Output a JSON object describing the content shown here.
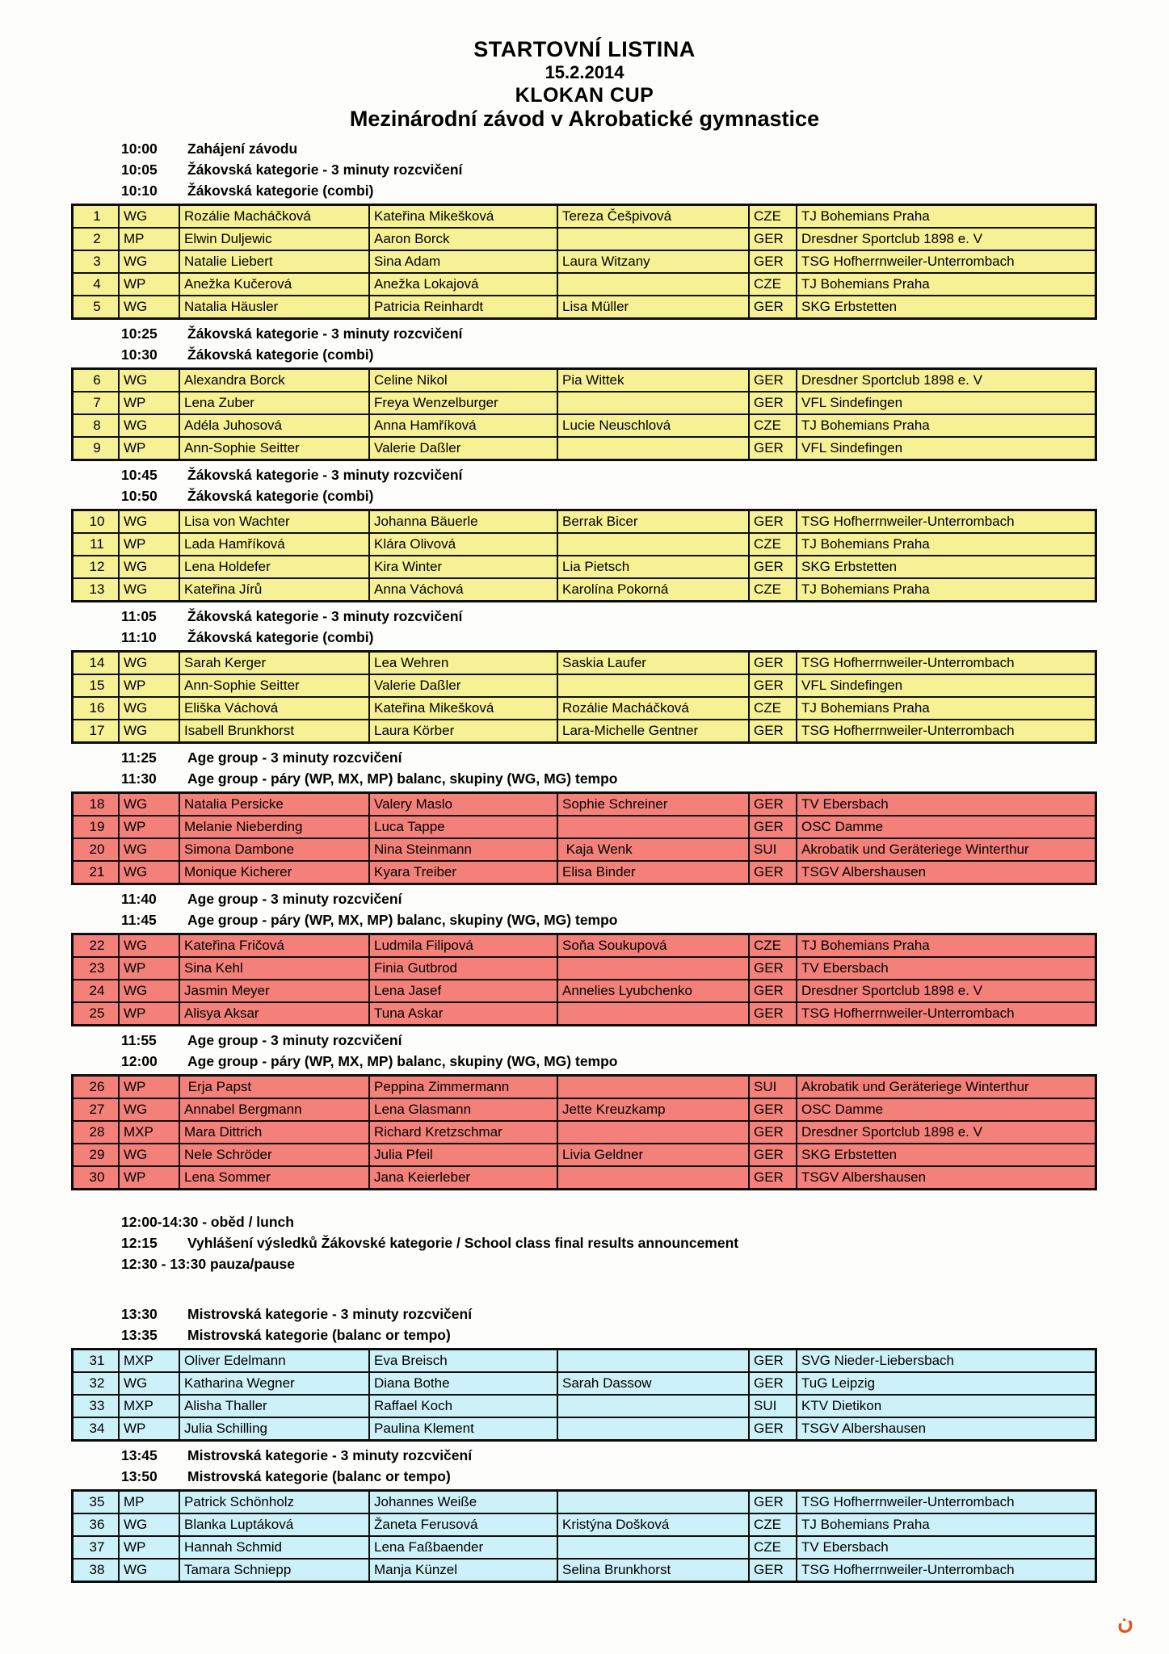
{
  "title": {
    "line1": "STARTOVNÍ LISTINA",
    "line2": "15.2.2014",
    "line3": "KLOKAN CUP",
    "line4": "Mezinárodní závod v Akrobatické gymnastice"
  },
  "colors": {
    "yellow": "#f7f196",
    "salmon": "#f4807a",
    "cyan": "#cdf1f8"
  },
  "corner_mark": "ن",
  "blocks": [
    {
      "type": "schedule",
      "items": [
        {
          "time": "10:00",
          "label": "Zahájení závodu"
        },
        {
          "time": "10:05",
          "label": "Žákovská kategorie - 3 minuty rozcvičení"
        },
        {
          "time": "10:10",
          "label": "Žákovská kategorie (combi)"
        }
      ]
    },
    {
      "type": "table",
      "color": "yellow",
      "rows": [
        [
          "1",
          "WG",
          "Rozálie Macháčková",
          "Kateřina Mikešková",
          "Tereza Češpivová",
          "CZE",
          "TJ Bohemians Praha"
        ],
        [
          "2",
          "MP",
          "Elwin Duljewic",
          "Aaron Borck",
          "",
          "GER",
          "Dresdner Sportclub 1898 e. V"
        ],
        [
          "3",
          "WG",
          "Natalie Liebert",
          "Sina Adam",
          "Laura Witzany",
          "GER",
          "TSG Hofherrnweiler-Unterrombach"
        ],
        [
          "4",
          "WP",
          "Anežka Kučerová",
          "Anežka Lokajová",
          "",
          "CZE",
          "TJ Bohemians Praha"
        ],
        [
          "5",
          "WG",
          "Natalia Häusler",
          "Patricia Reinhardt",
          "Lisa Müller",
          "GER",
          "SKG Erbstetten"
        ]
      ]
    },
    {
      "type": "schedule",
      "items": [
        {
          "time": "10:25",
          "label": "Žákovská kategorie - 3 minuty rozcvičení"
        },
        {
          "time": "10:30",
          "label": "Žákovská kategorie (combi)"
        }
      ]
    },
    {
      "type": "table",
      "color": "yellow",
      "rows": [
        [
          "6",
          "WG",
          "Alexandra Borck",
          "Celine Nikol",
          "Pia Wittek",
          "GER",
          "Dresdner Sportclub 1898 e. V"
        ],
        [
          "7",
          "WP",
          "Lena Zuber",
          "Freya Wenzelburger",
          "",
          "GER",
          "VFL Sindefingen"
        ],
        [
          "8",
          "WG",
          "Adéla Juhosová",
          "Anna Hamříková",
          "Lucie Neuschlová",
          "CZE",
          "TJ Bohemians Praha"
        ],
        [
          "9",
          "WP",
          "Ann-Sophie Seitter",
          "Valerie Daßler",
          "",
          "GER",
          "VFL Sindefingen"
        ]
      ]
    },
    {
      "type": "schedule",
      "items": [
        {
          "time": "10:45",
          "label": "Žákovská kategorie - 3 minuty rozcvičení"
        },
        {
          "time": "10:50",
          "label": "Žákovská kategorie (combi)"
        }
      ]
    },
    {
      "type": "table",
      "color": "yellow",
      "rows": [
        [
          "10",
          "WG",
          "Lisa von Wachter",
          "Johanna Bäuerle",
          "Berrak Bicer",
          "GER",
          "TSG Hofherrnweiler-Unterrombach"
        ],
        [
          "11",
          "WP",
          "Lada Hamříková",
          "Klára Olivová",
          "",
          "CZE",
          "TJ Bohemians Praha"
        ],
        [
          "12",
          "WG",
          "Lena Holdefer",
          "Kira Winter",
          "Lia Pietsch",
          "GER",
          "SKG Erbstetten"
        ],
        [
          "13",
          "WG",
          "Kateřina Jírů",
          "Anna Váchová",
          "Karolína Pokorná",
          "CZE",
          "TJ Bohemians Praha"
        ]
      ]
    },
    {
      "type": "schedule",
      "items": [
        {
          "time": "11:05",
          "label": "Žákovská kategorie - 3 minuty rozcvičení"
        },
        {
          "time": "11:10",
          "label": "Žákovská kategorie (combi)"
        }
      ]
    },
    {
      "type": "table",
      "color": "yellow",
      "rows": [
        [
          "14",
          "WG",
          "Sarah Kerger",
          "Lea Wehren",
          "Saskia Laufer",
          "GER",
          "TSG Hofherrnweiler-Unterrombach"
        ],
        [
          "15",
          "WP",
          "Ann-Sophie Seitter",
          "Valerie Daßler",
          "",
          "GER",
          "VFL Sindefingen"
        ],
        [
          "16",
          "WG",
          "Eliška Váchová",
          "Kateřina Mikešková",
          "Rozálie Macháčková",
          "CZE",
          "TJ Bohemians Praha"
        ],
        [
          "17",
          "WG",
          "Isabell Brunkhorst",
          "Laura Körber",
          "Lara-Michelle Gentner",
          "GER",
          "TSG Hofherrnweiler-Unterrombach"
        ]
      ]
    },
    {
      "type": "schedule",
      "items": [
        {
          "time": "11:25",
          "label": "Age group - 3 minuty rozcvičení"
        },
        {
          "time": "11:30",
          "label": "Age group - páry (WP, MX, MP) balanc, skupiny (WG, MG) tempo"
        }
      ]
    },
    {
      "type": "table",
      "color": "salmon",
      "rows": [
        [
          "18",
          "WG",
          "Natalia Persicke",
          "Valery Maslo",
          "Sophie Schreiner",
          "GER",
          "TV Ebersbach"
        ],
        [
          "19",
          "WP",
          "Melanie Nieberding",
          "Luca Tappe",
          "",
          "GER",
          "OSC Damme"
        ],
        [
          "20",
          "WG",
          "Simona Dambone",
          "Nina Steinmann",
          " Kaja Wenk",
          "SUI",
          "Akrobatik und Geräteriege Winterthur"
        ],
        [
          "21",
          "WG",
          "Monique Kicherer",
          "Kyara Treiber",
          "Elisa Binder",
          "GER",
          "TSGV Albershausen"
        ]
      ]
    },
    {
      "type": "schedule",
      "items": [
        {
          "time": "11:40",
          "label": "Age group - 3 minuty rozcvičení"
        },
        {
          "time": "11:45",
          "label": "Age group - páry (WP, MX, MP) balanc, skupiny (WG, MG) tempo"
        }
      ]
    },
    {
      "type": "table",
      "color": "salmon",
      "rows": [
        [
          "22",
          "WG",
          "Kateřina Fričová",
          "Ludmila Filipová",
          "Soňa Soukupová",
          "CZE",
          "TJ Bohemians Praha"
        ],
        [
          "23",
          "WP",
          "Sina Kehl",
          "Finia Gutbrod",
          "",
          "GER",
          "TV Ebersbach"
        ],
        [
          "24",
          "WG",
          "Jasmin Meyer",
          "Lena Jasef",
          "Annelies Lyubchenko",
          "GER",
          "Dresdner Sportclub 1898 e. V"
        ],
        [
          "25",
          "WP",
          "Alisya Aksar",
          "Tuna Askar",
          "",
          "GER",
          "TSG Hofherrnweiler-Unterrombach"
        ]
      ]
    },
    {
      "type": "schedule",
      "items": [
        {
          "time": "11:55",
          "label": "Age group - 3 minuty rozcvičení"
        },
        {
          "time": "12:00",
          "label": "Age group - páry (WP, MX, MP) balanc, skupiny (WG, MG) tempo"
        }
      ]
    },
    {
      "type": "table",
      "color": "salmon",
      "rows": [
        [
          "26",
          "WP",
          " Erja Papst",
          "Peppina Zimmermann",
          "",
          "SUI",
          "Akrobatik und Geräteriege Winterthur"
        ],
        [
          "27",
          "WG",
          "Annabel Bergmann",
          "Lena Glasmann",
          "Jette Kreuzkamp",
          "GER",
          "OSC Damme"
        ],
        [
          "28",
          "MXP",
          "Mara Dittrich",
          "Richard Kretzschmar",
          "",
          "GER",
          "Dresdner Sportclub 1898 e. V"
        ],
        [
          "29",
          "WG",
          "Nele Schröder",
          "Julia Pfeil",
          "Livia Geldner",
          "GER",
          "SKG Erbstetten"
        ],
        [
          "30",
          "WP",
          "Lena Sommer",
          "Jana Keierleber",
          "",
          "GER",
          "TSGV Albershausen"
        ]
      ]
    },
    {
      "type": "spacer",
      "size": "small"
    },
    {
      "type": "schedule",
      "items": [
        {
          "time": "12:00-14:30",
          "label": " - oběd / lunch"
        },
        {
          "time": "12:15",
          "label": "Vyhlášení výsledků Žákovské kategorie / School class final results announcement"
        },
        {
          "time": "12:30 - 13:30",
          "label": " pauza/pause"
        }
      ]
    },
    {
      "type": "spacer",
      "size": "large"
    },
    {
      "type": "schedule",
      "items": [
        {
          "time": "13:30",
          "label": "Mistrovská kategorie - 3 minuty rozcvičení"
        },
        {
          "time": "13:35",
          "label": "Mistrovská kategorie (balanc or tempo)"
        }
      ]
    },
    {
      "type": "table",
      "color": "cyan",
      "rows": [
        [
          "31",
          "MXP",
          "Oliver Edelmann",
          "Eva Breisch",
          "",
          "GER",
          "SVG Nieder-Liebersbach"
        ],
        [
          "32",
          "WG",
          "Katharina Wegner",
          "Diana Bothe",
          "Sarah Dassow",
          "GER",
          "TuG Leipzig"
        ],
        [
          "33",
          "MXP",
          "Alisha Thaller",
          "Raffael Koch",
          "",
          "SUI",
          "KTV Dietikon"
        ],
        [
          "34",
          "WP",
          "Julia Schilling",
          "Paulina Klement",
          "",
          "GER",
          "TSGV Albershausen"
        ]
      ]
    },
    {
      "type": "schedule",
      "items": [
        {
          "time": "13:45",
          "label": "Mistrovská kategorie - 3 minuty rozcvičení"
        },
        {
          "time": "13:50",
          "label": "Mistrovská kategorie (balanc or tempo)"
        }
      ]
    },
    {
      "type": "table",
      "color": "cyan",
      "rows": [
        [
          "35",
          "MP",
          "Patrick Schönholz",
          "Johannes Weiße",
          "",
          "GER",
          "TSG Hofherrnweiler-Unterrombach"
        ],
        [
          "36",
          "WG",
          "Blanka Luptáková",
          "Žaneta Ferusová",
          "Kristýna Došková",
          "CZE",
          "TJ Bohemians Praha"
        ],
        [
          "37",
          "WP",
          "Hannah Schmid",
          "Lena Faßbaender",
          "",
          "CZE",
          "TV Ebersbach"
        ],
        [
          "38",
          "WG",
          "Tamara Schniepp",
          "Manja Künzel",
          "Selina Brunkhorst",
          "GER",
          "TSG Hofherrnweiler-Unterrombach"
        ]
      ]
    }
  ]
}
